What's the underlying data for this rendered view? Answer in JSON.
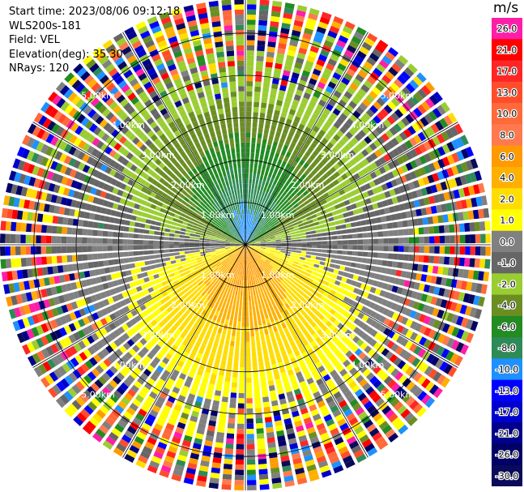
{
  "header": {
    "start_time": "Start time: 2023/08/06 09:12:18",
    "instrument": "WLS200s-181",
    "field": "Field: VEL",
    "elevation": "Elevation(deg): 35.30",
    "nrays": "NRays: 120"
  },
  "chart_data": {
    "type": "heatmap",
    "subtype": "polar-ppi",
    "field": "VEL",
    "units": "m/s",
    "n_rays": 120,
    "elevation_deg": 35.3,
    "range_rings_km": [
      1.0,
      2.0,
      3.0,
      4.0,
      5.0
    ],
    "range_ring_labels": [
      "1.00km",
      "2.00km",
      "3.00km",
      "4.00km",
      "5.00km"
    ],
    "max_range_km": 5.8,
    "azimuth_lines_deg": [
      0,
      30,
      60,
      90,
      120,
      150,
      180,
      210,
      240,
      270,
      300,
      330
    ],
    "colorbar": {
      "ticks": [
        "26.0",
        "21.0",
        "17.0",
        "13.0",
        "10.0",
        "8.0",
        "6.0",
        "4.0",
        "2.0",
        "1.0",
        "0.0",
        "-1.0",
        "-2.0",
        "-4.0",
        "-6.0",
        "-8.0",
        "-10.0",
        "-13.0",
        "-17.0",
        "-21.0",
        "-26.0",
        "-30.0"
      ],
      "colors": [
        "#ff1ea8",
        "#ff0000",
        "#ff2626",
        "#ff4d2b",
        "#ff6a3a",
        "#ff7a4f",
        "#ff9a00",
        "#ffb000",
        "#ffdd00",
        "#ffff00",
        "#808080",
        "#666666",
        "#9acd32",
        "#6b8e23",
        "#228b22",
        "#2e8b57",
        "#1e90ff",
        "#0000ff",
        "#0000cd",
        "#00008b",
        "#000066",
        "#0a0a5a"
      ]
    },
    "pattern_description_values": {
      "near_field_north_velocity": -10.0,
      "near_field_south_velocity": 8.0,
      "far_field": "noisy"
    }
  }
}
